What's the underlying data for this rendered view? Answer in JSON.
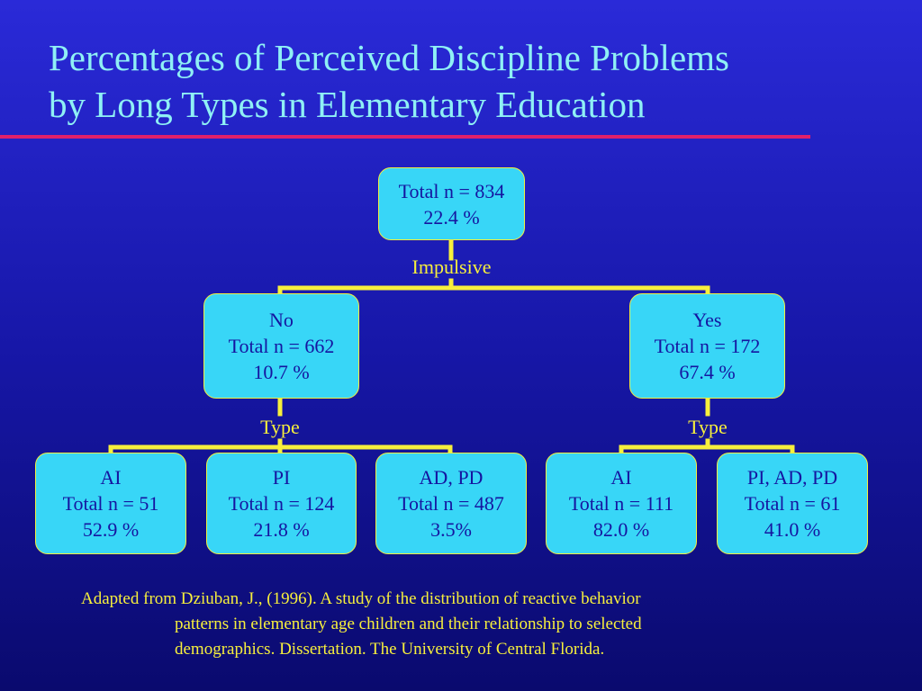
{
  "title": {
    "line1": "Percentages of Perceived Discipline Problems",
    "line2": "by Long Types in Elementary Education"
  },
  "root": {
    "line1": "Total n = 834",
    "line2": "22.4 %"
  },
  "root_split": "Impulsive",
  "level1": {
    "no": {
      "label": "No",
      "total": "Total n = 662",
      "pct": "10.7 %",
      "split": "Type"
    },
    "yes": {
      "label": "Yes",
      "total": "Total n = 172",
      "pct": "67.4 %",
      "split": "Type"
    }
  },
  "leaves": [
    {
      "label": "AI",
      "total": "Total n = 51",
      "pct": "52.9 %"
    },
    {
      "label": "PI",
      "total": "Total n = 124",
      "pct": "21.8 %"
    },
    {
      "label": "AD, PD",
      "total": "Total n = 487",
      "pct": "3.5%"
    },
    {
      "label": "AI",
      "total": "Total n = 111",
      "pct": "82.0 %"
    },
    {
      "label": "PI, AD, PD",
      "total": "Total n = 61",
      "pct": "41.0 %"
    }
  ],
  "citation": {
    "line1": "Adapted from Dziuban, J., (1996). A study of the distribution of reactive behavior",
    "line2": "patterns in elementary age children and their relationship to selected",
    "line3": "demographics. Dissertation. The University of Central Florida."
  },
  "colors": {
    "background": "#1717a8",
    "title_text": "#8ff0f5",
    "rule": "#e0206a",
    "node_fill": "#38d6f7",
    "node_text": "#1515a0",
    "connector": "#f7ef3c"
  }
}
